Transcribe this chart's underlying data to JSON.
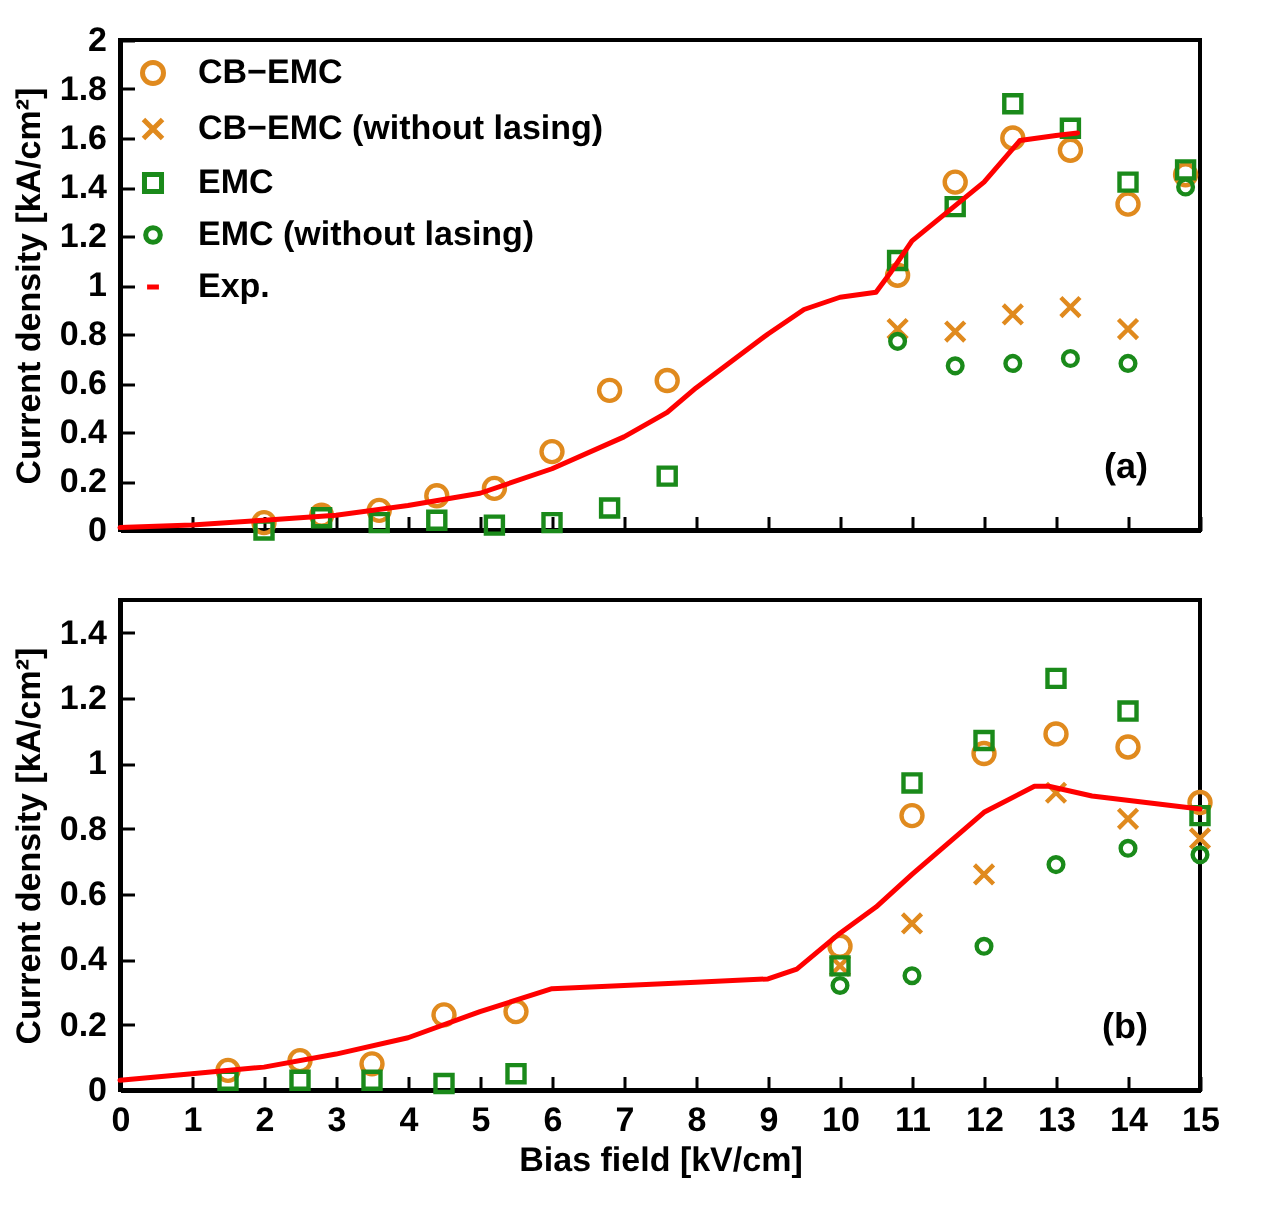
{
  "chart_data": [
    {
      "type": "scatter",
      "annotations": [
        "(a)"
      ],
      "ylabel": "Current density [kA/cm²]",
      "xlim": [
        0,
        15
      ],
      "xticks": [
        0,
        1,
        2,
        3,
        4,
        5,
        6,
        7,
        8,
        9,
        10,
        11,
        12,
        13,
        14,
        15
      ],
      "ylim": [
        0,
        2
      ],
      "yticks": [
        0,
        0.2,
        0.4,
        0.6,
        0.8,
        1,
        1.2,
        1.4,
        1.6,
        1.8,
        2
      ],
      "tick_labels": "y",
      "grid": false,
      "legend": "top left",
      "series": [
        {
          "name": "CB−EMC",
          "type": "scatter",
          "marker": "circle",
          "color": "#e08a1e",
          "x": [
            2,
            2.8,
            3.6,
            4.4,
            5.2,
            6,
            6.8,
            7.6,
            10.8,
            11.6,
            12.4,
            13.2,
            14,
            14.8
          ],
          "values": [
            0.03,
            0.06,
            0.08,
            0.14,
            0.17,
            0.32,
            0.57,
            0.61,
            1.04,
            1.42,
            1.6,
            1.55,
            1.33,
            1.45
          ]
        },
        {
          "name": "CB−EMC (without lasing)",
          "type": "scatter",
          "marker": "cross",
          "color": "#e08a1e",
          "x": [
            10.8,
            11.6,
            12.4,
            13.2,
            14
          ],
          "values": [
            0.82,
            0.81,
            0.88,
            0.91,
            0.82
          ]
        },
        {
          "name": "EMC",
          "type": "scatter",
          "marker": "square",
          "color": "#1a8a1a",
          "x": [
            2,
            2.8,
            3.6,
            4.4,
            5.2,
            6,
            6.8,
            7.6,
            10.8,
            11.6,
            12.4,
            13.2,
            14,
            14.8
          ],
          "values": [
            0,
            0.05,
            0.03,
            0.04,
            0.02,
            0.03,
            0.09,
            0.22,
            1.1,
            1.32,
            1.74,
            1.64,
            1.42,
            1.47
          ]
        },
        {
          "name": "EMC (without lasing)",
          "type": "scatter",
          "marker": "circle",
          "color": "#1a8a1a",
          "x": [
            10.8,
            11.6,
            12.4,
            13.2,
            14,
            14.8
          ],
          "values": [
            0.77,
            0.67,
            0.68,
            0.7,
            0.68,
            1.4
          ]
        },
        {
          "name": "Exp.",
          "type": "line",
          "marker": "none",
          "line_style": "solid",
          "color": "#ff0000",
          "x": [
            0,
            1,
            2,
            3,
            4,
            5,
            6,
            7,
            7.6,
            8,
            9,
            9.5,
            10,
            10.5,
            10.7,
            11,
            12,
            12.5,
            13,
            13.3
          ],
          "values": [
            0.01,
            0.02,
            0.04,
            0.06,
            0.1,
            0.15,
            0.25,
            0.38,
            0.48,
            0.58,
            0.8,
            0.9,
            0.95,
            0.97,
            1.05,
            1.18,
            1.42,
            1.59,
            1.61,
            1.62
          ]
        }
      ]
    },
    {
      "type": "scatter",
      "annotations": [
        "(b)"
      ],
      "xlabel": "Bias field [kV/cm]",
      "ylabel": "Current density [kA/cm²]",
      "xlim": [
        0,
        15
      ],
      "xticks": [
        0,
        1,
        2,
        3,
        4,
        5,
        6,
        7,
        8,
        9,
        10,
        11,
        12,
        13,
        14,
        15
      ],
      "ylim": [
        0,
        1.5
      ],
      "yticks": [
        0,
        0.2,
        0.4,
        0.6,
        0.8,
        1,
        1.2,
        1.4
      ],
      "grid": false,
      "series": [
        {
          "type": "scatter",
          "marker": "circle",
          "color": "#e08a1e",
          "x": [
            1.5,
            2.5,
            3.5,
            4.5,
            5.5,
            10,
            11,
            12,
            13,
            14,
            15
          ],
          "values": [
            0.06,
            0.09,
            0.08,
            0.23,
            0.24,
            0.44,
            0.84,
            1.03,
            1.09,
            1.05,
            0.88
          ]
        },
        {
          "type": "scatter",
          "marker": "cross",
          "color": "#e08a1e",
          "x": [
            10,
            11,
            12,
            13,
            14,
            15
          ],
          "values": [
            0.38,
            0.51,
            0.66,
            0.91,
            0.83,
            0.77
          ]
        },
        {
          "type": "scatter",
          "marker": "square",
          "color": "#1a8a1a",
          "x": [
            1.5,
            2.5,
            3.5,
            4.5,
            5.5,
            10,
            11,
            12,
            13,
            14,
            15
          ],
          "values": [
            0.03,
            0.03,
            0.03,
            0.02,
            0.05,
            0.38,
            0.94,
            1.07,
            1.26,
            1.16,
            0.84
          ]
        },
        {
          "type": "scatter",
          "marker": "circle",
          "color": "#1a8a1a",
          "x": [
            10,
            11,
            12,
            13,
            14,
            15
          ],
          "values": [
            0.32,
            0.35,
            0.44,
            0.69,
            0.74,
            0.72
          ]
        },
        {
          "type": "line",
          "marker": "none",
          "line_style": "solid",
          "color": "#ff0000",
          "x": [
            0,
            1,
            2,
            3,
            4,
            5,
            6,
            7,
            8,
            9,
            9.4,
            10,
            10.5,
            11,
            12,
            12.7,
            12.9,
            13.5,
            15
          ],
          "values": [
            0.03,
            0.05,
            0.07,
            0.11,
            0.16,
            0.24,
            0.31,
            0.32,
            0.33,
            0.34,
            0.37,
            0.48,
            0.56,
            0.66,
            0.85,
            0.93,
            0.93,
            0.9,
            0.86
          ]
        }
      ]
    }
  ]
}
